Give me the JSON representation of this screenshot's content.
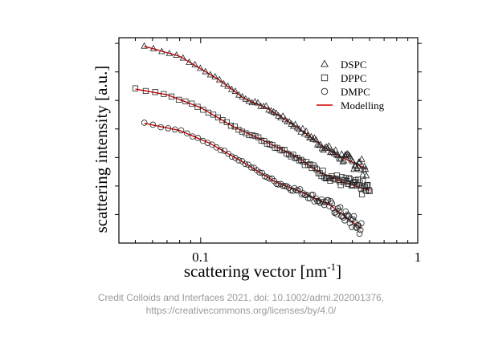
{
  "chart_data": {
    "type": "scatter",
    "x_scale": "log",
    "y_scale": "log",
    "xlim": [
      0.042,
      1.0
    ],
    "ylim_decades": [
      0,
      7.2
    ],
    "grid": false,
    "title": "",
    "xlabel": "scattering vector [nm",
    "xlabel_sup": "-1",
    "xlabel_close": "]",
    "ylabel": "scattering intensity [a.u.]",
    "x_tick_labels": [
      {
        "value": 0.1,
        "label": "0.1"
      },
      {
        "value": 1,
        "label": "1"
      }
    ],
    "legend_position": "top-right",
    "series": [
      {
        "name": "DSPC",
        "marker": "triangle",
        "x_range": [
          0.055,
          0.58
        ],
        "n_points": 95,
        "y_points": [
          [
            0.055,
            6.9
          ],
          [
            0.08,
            6.55
          ],
          [
            0.12,
            5.75
          ],
          [
            0.16,
            5.05
          ],
          [
            0.2,
            4.75
          ],
          [
            0.28,
            4.05
          ],
          [
            0.38,
            3.3
          ],
          [
            0.45,
            3.0
          ],
          [
            0.58,
            2.6
          ]
        ]
      },
      {
        "name": "DPPC",
        "marker": "square",
        "x_range": [
          0.05,
          0.6
        ],
        "n_points": 95,
        "y_points": [
          [
            0.05,
            5.4
          ],
          [
            0.07,
            5.2
          ],
          [
            0.1,
            4.75
          ],
          [
            0.14,
            4.1
          ],
          [
            0.2,
            3.55
          ],
          [
            0.28,
            3.0
          ],
          [
            0.35,
            2.5
          ],
          [
            0.45,
            2.15
          ],
          [
            0.6,
            1.85
          ]
        ]
      },
      {
        "name": "DMPC",
        "marker": "circle",
        "x_range": [
          0.055,
          0.55
        ],
        "n_points": 95,
        "y_points": [
          [
            0.055,
            4.2
          ],
          [
            0.08,
            3.95
          ],
          [
            0.11,
            3.5
          ],
          [
            0.16,
            2.8
          ],
          [
            0.22,
            2.15
          ],
          [
            0.3,
            1.75
          ],
          [
            0.4,
            1.3
          ],
          [
            0.55,
            0.5
          ]
        ]
      },
      {
        "name": "Modelling",
        "marker": "line",
        "color": "#d00000"
      }
    ]
  },
  "credit": {
    "line1": "Credit Colloids and Interfaces 2021, doi: 10.1002/admi.202001376,",
    "line2": "https://creativecommons.org/licenses/by/4.0/"
  },
  "colors": {
    "marker": "#222222",
    "model": "#d00000",
    "axis": "#000000"
  }
}
